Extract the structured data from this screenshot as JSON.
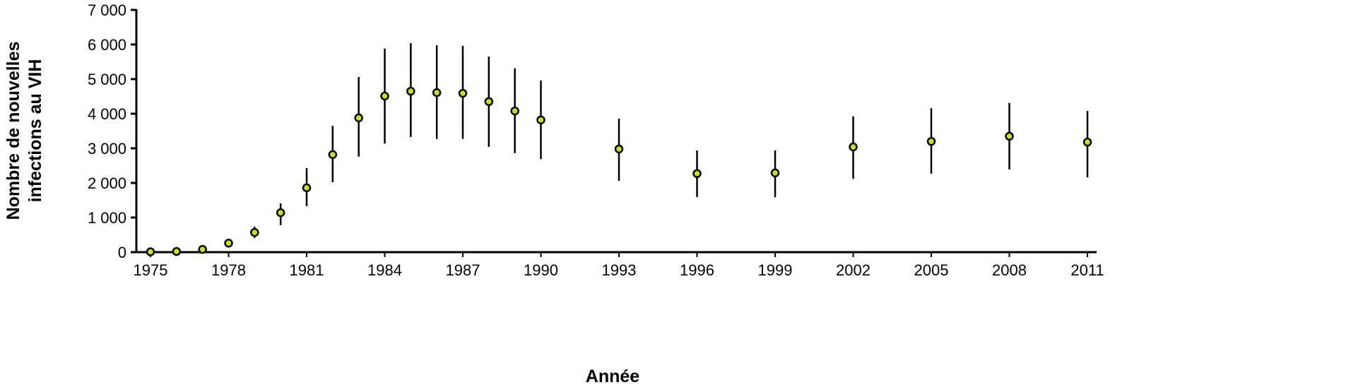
{
  "chart_data": {
    "type": "scatter",
    "title": "",
    "xlabel": "Année",
    "ylabel_lines": [
      "Nombre de nouvelles",
      "infections au VIH"
    ],
    "xlim": [
      1975,
      2011
    ],
    "ylim": [
      0,
      7000
    ],
    "grid": false,
    "x_ticks": [
      1975,
      1978,
      1981,
      1984,
      1987,
      1990,
      1993,
      1996,
      1999,
      2002,
      2005,
      2008,
      2011
    ],
    "y_ticks": [
      0,
      1000,
      2000,
      3000,
      4000,
      5000,
      6000,
      7000
    ],
    "y_tick_labels": [
      "0",
      "1 000",
      "2 000",
      "3 000",
      "4 000",
      "5 000",
      "6 000",
      "7 000"
    ],
    "marker_color": "#c8e600",
    "series": [
      {
        "x": [
          1975,
          1976,
          1977,
          1978,
          1979,
          1980,
          1981,
          1982,
          1983,
          1984,
          1985,
          1986,
          1987,
          1988,
          1989,
          1990,
          1993,
          1996,
          1999,
          2002,
          2005,
          2008,
          2011
        ],
        "y": [
          10,
          20,
          80,
          260,
          570,
          1140,
          1860,
          2820,
          3880,
          4510,
          4650,
          4610,
          4590,
          4350,
          4080,
          3820,
          2980,
          2270,
          2290,
          3040,
          3200,
          3350,
          3180
        ],
        "upper": [
          20,
          40,
          110,
          320,
          735,
          1410,
          2430,
          3650,
          5060,
          5880,
          6040,
          5980,
          5960,
          5650,
          5310,
          4960,
          3860,
          2940,
          2940,
          3920,
          4160,
          4310,
          4080
        ],
        "lower": [
          0,
          5,
          50,
          200,
          410,
          780,
          1330,
          2020,
          2760,
          3140,
          3330,
          3270,
          3270,
          3040,
          2860,
          2690,
          2060,
          1590,
          1590,
          2120,
          2270,
          2390,
          2160
        ]
      }
    ]
  }
}
